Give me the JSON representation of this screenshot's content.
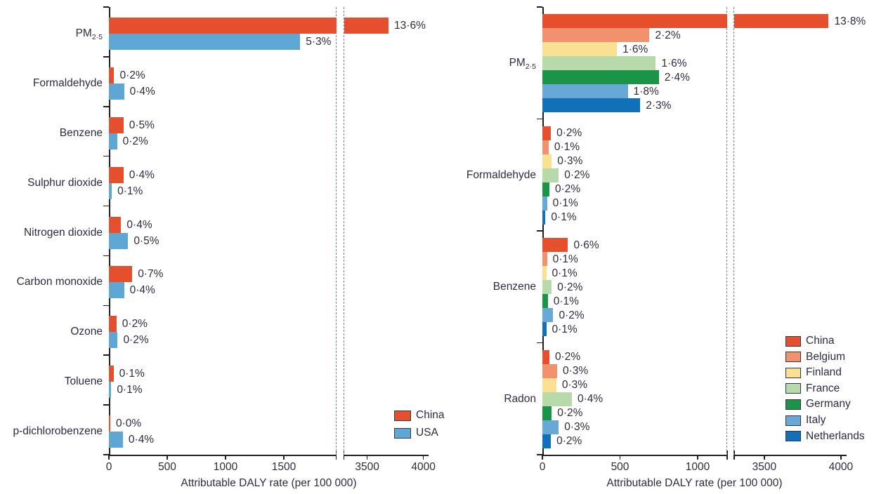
{
  "figure": {
    "background": "#ffffff",
    "text_color": "#2e2c3d",
    "axis_color": "#231f20",
    "break_line_color": "#73889a"
  },
  "chart_data": [
    {
      "type": "bar",
      "orientation": "horizontal",
      "xlabel": "Attributable DALY rate (per 100 000)",
      "xticks": [
        0,
        500,
        1000,
        1500,
        3500,
        4000
      ],
      "xlim": [
        0,
        4050
      ],
      "axis_break": [
        1950,
        3294
      ],
      "grid": false,
      "legend_position": "inside-bottom-right",
      "categories": [
        {
          "label": "PM",
          "sub": "2·5"
        },
        {
          "label": "Formaldehyde"
        },
        {
          "label": "Benzene"
        },
        {
          "label": "Sulphur dioxide"
        },
        {
          "label": "Nitrogen dioxide"
        },
        {
          "label": "Carbon monoxide"
        },
        {
          "label": "Ozone"
        },
        {
          "label": "Toluene"
        },
        {
          "label": "p-dichlorobenzene"
        }
      ],
      "series": [
        {
          "name": "China",
          "color": "#e64f2e",
          "values": [
            3690,
            45,
            125,
            125,
            105,
            200,
            65,
            40,
            8
          ],
          "bar_labels": [
            "13·6%",
            "0·2%",
            "0·5%",
            "0·4%",
            "0·4%",
            "0·7%",
            "0·2%",
            "0·1%",
            "0·0%"
          ]
        },
        {
          "name": "USA",
          "color": "#5ea7d4",
          "values": [
            1640,
            130,
            70,
            25,
            165,
            130,
            75,
            20,
            120
          ],
          "bar_labels": [
            "5·3%",
            "0·4%",
            "0·2%",
            "0·1%",
            "0·5%",
            "0·4%",
            "0·2%",
            "0·1%",
            "0·4%"
          ]
        }
      ]
    },
    {
      "type": "bar",
      "orientation": "horizontal",
      "xlabel": "Attributable DALY rate (per 100 000)",
      "xticks": [
        0,
        500,
        1000,
        3500,
        4000
      ],
      "xlim": [
        0,
        4050
      ],
      "axis_break": [
        1190,
        3303
      ],
      "grid": false,
      "legend_position": "inside-right",
      "categories": [
        {
          "label": "PM",
          "sub": "2·5"
        },
        {
          "label": "Formaldehyde"
        },
        {
          "label": "Benzene"
        },
        {
          "label": "Radon"
        }
      ],
      "series": [
        {
          "name": "China",
          "color": "#e64f2e",
          "values": [
            3920,
            55,
            165,
            45
          ],
          "bar_labels": [
            "13·8%",
            "0·2%",
            "0·6%",
            "0·2%"
          ]
        },
        {
          "name": "Belgium",
          "color": "#f0926d",
          "values": [
            690,
            40,
            30,
            95
          ],
          "bar_labels": [
            "2·2%",
            "0·1%",
            "0·1%",
            "0·3%"
          ]
        },
        {
          "name": "Finland",
          "color": "#fae093",
          "values": [
            480,
            60,
            25,
            90
          ],
          "bar_labels": [
            "1·6%",
            "0·3%",
            "0·1%",
            "0·3%"
          ]
        },
        {
          "name": "France",
          "color": "#b8d9a9",
          "values": [
            730,
            105,
            60,
            190
          ],
          "bar_labels": [
            "1·6%",
            "0·2%",
            "0·2%",
            "0·4%"
          ]
        },
        {
          "name": "Germany",
          "color": "#1b9448",
          "values": [
            750,
            45,
            35,
            60
          ],
          "bar_labels": [
            "2·4%",
            "0·2%",
            "0·1%",
            "0·2%"
          ]
        },
        {
          "name": "Italy",
          "color": "#68a8d6",
          "values": [
            550,
            30,
            70,
            105
          ],
          "bar_labels": [
            "1·8%",
            "0·1%",
            "0·2%",
            "0·3%"
          ]
        },
        {
          "name": "Netherlands",
          "color": "#1070b8",
          "values": [
            630,
            20,
            25,
            55
          ],
          "bar_labels": [
            "2·3%",
            "0·1%",
            "0·1%",
            "0·2%"
          ]
        }
      ]
    }
  ]
}
